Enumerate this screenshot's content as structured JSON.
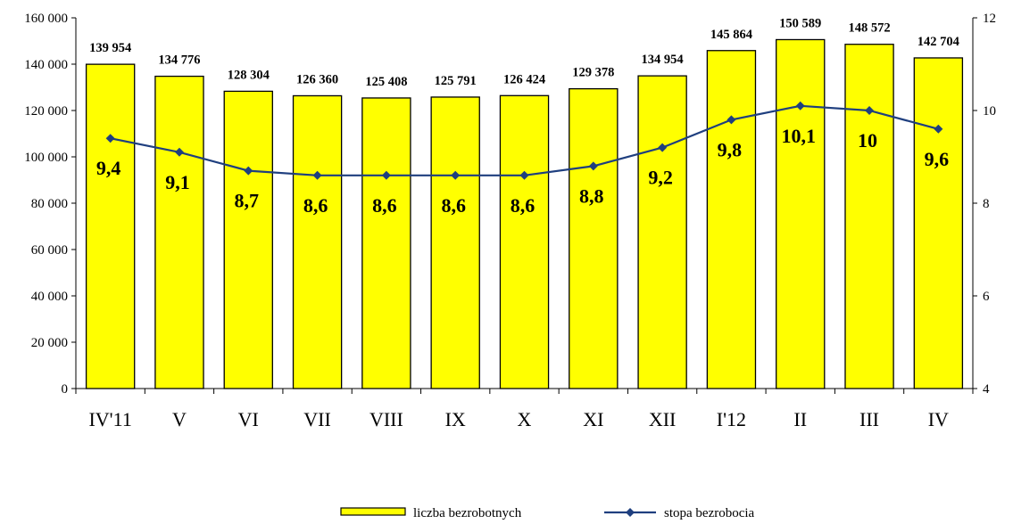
{
  "chart_data": {
    "type": "bar",
    "title": "",
    "categories": [
      "IV'11",
      "V",
      "VI",
      "VII",
      "VIII",
      "IX",
      "X",
      "XI",
      "XII",
      "I'12",
      "II",
      "III",
      "IV"
    ],
    "series": [
      {
        "name": "liczba bezrobotnych",
        "type": "bar",
        "axis": "left",
        "color": "#FFFF00",
        "values": [
          139954,
          134776,
          128304,
          126360,
          125408,
          125791,
          126424,
          129378,
          134954,
          145864,
          150589,
          148572,
          142704
        ],
        "labels": [
          "139 954",
          "134 776",
          "128 304",
          "126 360",
          "125 408",
          "125 791",
          "126 424",
          "129 378",
          "134 954",
          "145 864",
          "150 589",
          "148 572",
          "142 704"
        ]
      },
      {
        "name": "stopa bezrobocia",
        "type": "line",
        "axis": "right",
        "color": "#1F3F7F",
        "values": [
          9.4,
          9.1,
          8.7,
          8.6,
          8.6,
          8.6,
          8.6,
          8.8,
          9.2,
          9.8,
          10.1,
          10.0,
          9.6
        ],
        "labels": [
          "9,4",
          "9,1",
          "8,7",
          "8,6",
          "8,6",
          "8,6",
          "8,6",
          "8,8",
          "9,2",
          "9,8",
          "10,1",
          "10",
          "9,6"
        ]
      }
    ],
    "y_left": {
      "range": [
        0,
        160000
      ],
      "ticks": [
        0,
        20000,
        40000,
        60000,
        80000,
        100000,
        120000,
        140000,
        160000
      ],
      "tick_labels": [
        "0",
        "20 000",
        "40 000",
        "60 000",
        "80 000",
        "100 000",
        "120 000",
        "140 000",
        "160 000"
      ]
    },
    "y_right": {
      "range": [
        4,
        12
      ],
      "ticks": [
        4,
        6,
        8,
        10,
        12
      ],
      "tick_labels": [
        "4",
        "6",
        "8",
        "10",
        "12"
      ]
    },
    "grid": false,
    "legend": "bottom"
  }
}
